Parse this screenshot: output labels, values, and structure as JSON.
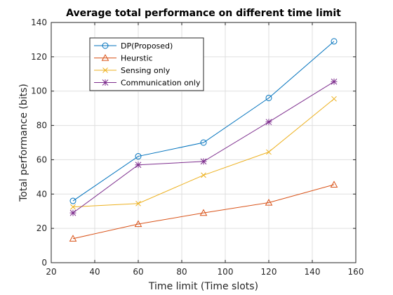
{
  "chart_data": {
    "type": "line",
    "title": "Average total performance on different time limit",
    "xlabel": "Time limit (Time slots)",
    "ylabel": "Total performance (bits)",
    "xlim": [
      20,
      160
    ],
    "ylim": [
      0,
      140
    ],
    "xticks": [
      20,
      40,
      60,
      80,
      100,
      120,
      140,
      160
    ],
    "yticks": [
      0,
      20,
      40,
      60,
      80,
      100,
      120,
      140
    ],
    "grid": true,
    "legend_position": "top-left",
    "x": [
      30,
      60,
      90,
      120,
      150
    ],
    "series": [
      {
        "name": "DP(Proposed)",
        "color": "#0072BD",
        "marker": "circle",
        "values": [
          36,
          62,
          70,
          96,
          129
        ]
      },
      {
        "name": "Heurstic",
        "color": "#D95319",
        "marker": "triangle",
        "values": [
          14,
          22.5,
          29,
          35,
          45.5
        ]
      },
      {
        "name": "Sensing only",
        "color": "#EDB120",
        "marker": "x",
        "values": [
          32.5,
          34.5,
          51,
          64.5,
          95.5
        ]
      },
      {
        "name": "Communication only",
        "color": "#7E2F8E",
        "marker": "asterisk",
        "values": [
          29,
          57,
          59,
          82,
          105.5
        ]
      }
    ]
  }
}
